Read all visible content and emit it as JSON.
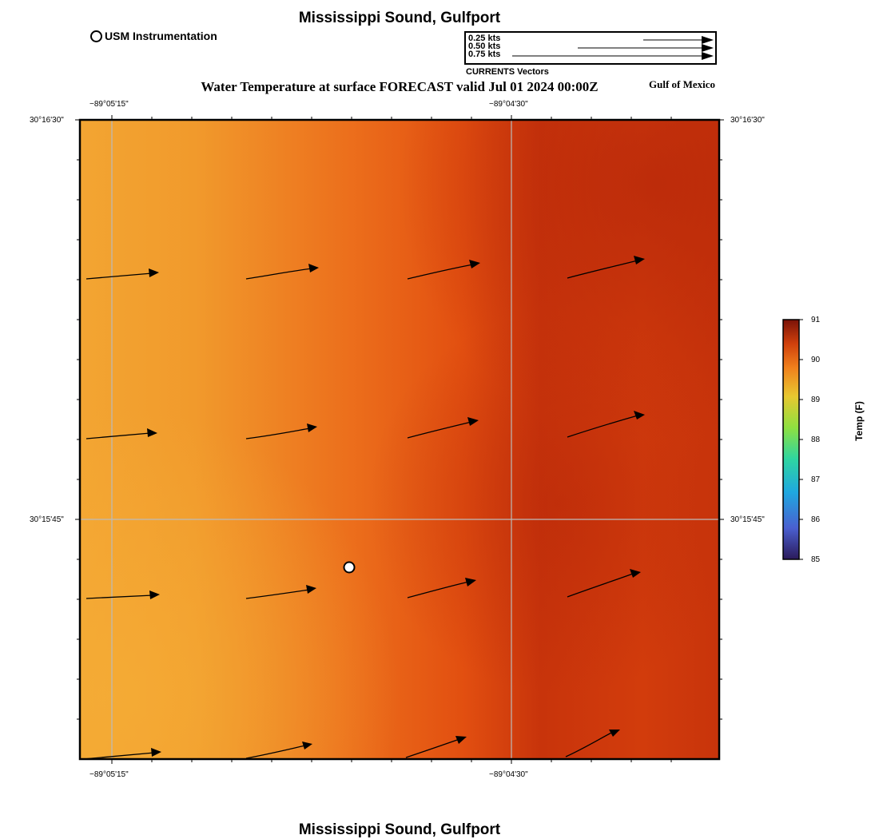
{
  "title_top": "Mississippi Sound, Gulfport",
  "title_bottom": "Mississippi Sound, Gulfport",
  "station_legend": "USM Instrumentation",
  "subtitle": "Water Temperature at surface FORECAST valid Jul 01 2024 00:00Z",
  "region_label": "Gulf of Mexico",
  "vector_legend": {
    "caption": "CURRENTS Vectors",
    "entries": [
      {
        "label": "0.25 kts",
        "speed": 0.25
      },
      {
        "label": "0.50 kts",
        "speed": 0.5
      },
      {
        "label": "0.75 kts",
        "speed": 0.75
      }
    ]
  },
  "axes": {
    "lon_labels": [
      "−89°05'15\"",
      "−89°04'30\""
    ],
    "lat_labels": [
      "30°16'30\"",
      "30°15'45\""
    ]
  },
  "colorbar": {
    "label": "Temp (F)",
    "min": 85,
    "max": 91,
    "ticks": [
      "85",
      "86",
      "87",
      "88",
      "89",
      "90",
      "91"
    ]
  },
  "colors": {
    "warm_light": "#f2a030",
    "warm_mid": "#ec6a1a",
    "warm_dark": "#c2300a",
    "grid": "#bbbbbb"
  }
}
